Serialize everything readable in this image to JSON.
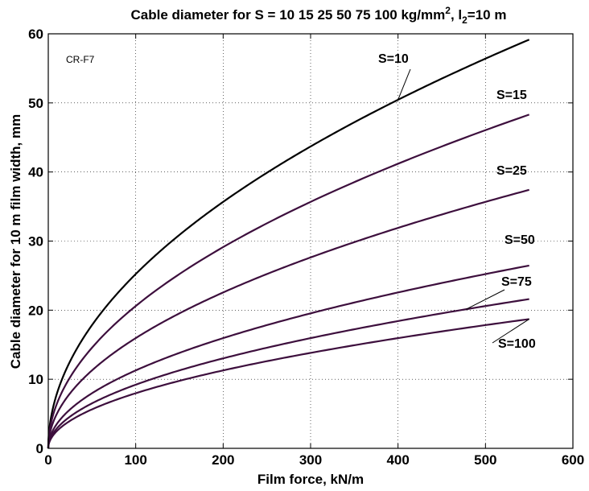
{
  "chart_data": {
    "type": "line",
    "title_text": "Cable diameter for S = 10  15  25  50  75 100 kg/mm",
    "title_sup": "2",
    "title_mid": ", l",
    "title_sub": "2",
    "title_end": "=10 m",
    "xlabel": "Film force, kN/m",
    "ylabel": "Cable diameter for 10 m film width, mm",
    "annotation": "CR-F7",
    "xlim": [
      0,
      600
    ],
    "ylim": [
      0,
      60
    ],
    "xticks": [
      0,
      100,
      200,
      300,
      400,
      500,
      600
    ],
    "yticks": [
      0,
      10,
      20,
      30,
      40,
      50,
      60
    ],
    "grid": true,
    "x_max": 550,
    "series": [
      {
        "name": "S=10",
        "color": "#000000",
        "k": 2.5226
      },
      {
        "name": "S=15",
        "color": "#3d0f3d",
        "k": 2.0597
      },
      {
        "name": "S=25",
        "color": "#3d0f3d",
        "k": 1.5954
      },
      {
        "name": "S=50",
        "color": "#3d0f3d",
        "k": 1.1281
      },
      {
        "name": "S=75",
        "color": "#3d0f3d",
        "k": 0.9211
      },
      {
        "name": "S=100",
        "color": "#3d0f3d",
        "k": 0.7977
      }
    ],
    "points": [
      {
        "x": 100,
        "S=10": 25.2,
        "S=15": 20.6,
        "S=25": 16.0,
        "S=50": 11.3,
        "S=75": 9.2,
        "S=100": 8.0
      },
      {
        "x": 200,
        "S=10": 35.7,
        "S=15": 29.1,
        "S=25": 22.6,
        "S=50": 16.0,
        "S=75": 13.0,
        "S=100": 11.3
      },
      {
        "x": 300,
        "S=10": 43.7,
        "S=15": 35.7,
        "S=25": 27.6,
        "S=50": 19.5,
        "S=75": 16.0,
        "S=100": 13.8
      },
      {
        "x": 400,
        "S=10": 50.5,
        "S=15": 41.2,
        "S=25": 31.9,
        "S=50": 22.6,
        "S=75": 18.4,
        "S=100": 16.0
      },
      {
        "x": 500,
        "S=10": 56.4,
        "S=15": 46.1,
        "S=25": 35.7,
        "S=50": 25.2,
        "S=75": 20.6,
        "S=100": 17.8
      },
      {
        "x": 550,
        "S=10": 59.2,
        "S=15": 48.3,
        "S=25": 37.4,
        "S=50": 26.5,
        "S=75": 21.6,
        "S=100": 18.7
      }
    ]
  }
}
